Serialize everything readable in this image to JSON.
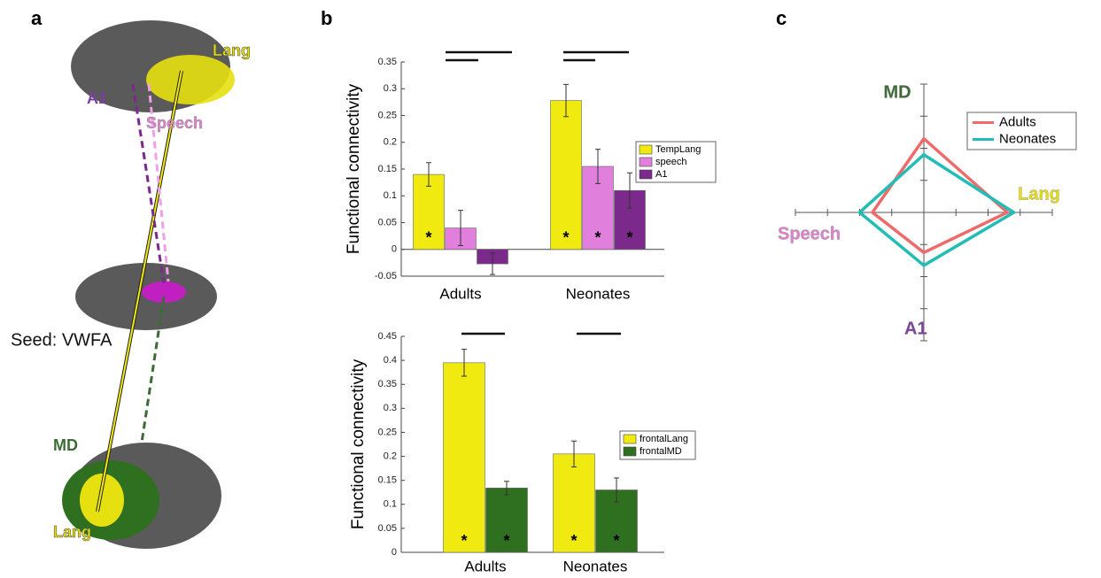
{
  "panel_labels": [
    "a",
    "b",
    "c"
  ],
  "brain_panel": {
    "labels": [
      "Lang",
      "A1",
      "Speech",
      "Seed: VWFA",
      "MD",
      "Lang"
    ]
  },
  "chart_data": [
    {
      "type": "bar",
      "ylabel": "Functional connectivity",
      "categories": [
        "Adults",
        "Neonates"
      ],
      "series": [
        {
          "name": "TempLang",
          "color": "#f0ea10",
          "values": [
            0.14,
            0.278
          ],
          "errors": [
            0.022,
            0.03
          ],
          "annotations": [
            "*",
            "*"
          ]
        },
        {
          "name": "speech",
          "color": "#e080dc",
          "values": [
            0.04,
            0.155
          ],
          "errors": [
            0.033,
            0.032
          ],
          "annotations": [
            null,
            "*"
          ]
        },
        {
          "name": "A1",
          "color": "#7b2a8c",
          "values": [
            -0.027,
            0.11
          ],
          "errors": [
            0.02,
            0.033
          ],
          "annotations": [
            null,
            "*"
          ]
        }
      ],
      "ylim": [
        -0.05,
        0.35
      ],
      "yticks": [
        -0.05,
        0,
        0.05,
        0.1,
        0.15,
        0.2,
        0.25,
        0.3,
        0.35
      ]
    },
    {
      "type": "bar",
      "ylabel": "Functional connectivity",
      "categories": [
        "Adults",
        "Neonates"
      ],
      "series": [
        {
          "name": "frontalLang",
          "color": "#f0ea10",
          "values": [
            0.395,
            0.205
          ],
          "errors": [
            0.028,
            0.027
          ],
          "annotations": [
            "*",
            "*"
          ]
        },
        {
          "name": "frontalMD",
          "color": "#2e7020",
          "values": [
            0.134,
            0.13
          ],
          "errors": [
            0.014,
            0.025
          ],
          "annotations": [
            "*",
            "*"
          ]
        }
      ],
      "ylim": [
        0,
        0.45
      ],
      "yticks": [
        0,
        0.05,
        0.1,
        0.15,
        0.2,
        0.25,
        0.3,
        0.35,
        0.4,
        0.45
      ]
    },
    {
      "type": "radar",
      "axes": [
        "MD",
        "Lang",
        "A1",
        "Speech"
      ],
      "axis_colors": [
        "#3d6b35",
        "#e8e000",
        "#7b3f9e",
        "#e080d0"
      ],
      "series": [
        {
          "name": "Adults",
          "color": "#ee6b6b",
          "values": [
            2.3,
            2.6,
            1.25,
            1.6
          ]
        },
        {
          "name": "Neonates",
          "color": "#22bdb5",
          "values": [
            1.8,
            2.8,
            1.65,
            2.0
          ]
        }
      ],
      "rlim": [
        0,
        4
      ],
      "rticks": [
        1,
        2,
        3,
        4
      ]
    }
  ]
}
